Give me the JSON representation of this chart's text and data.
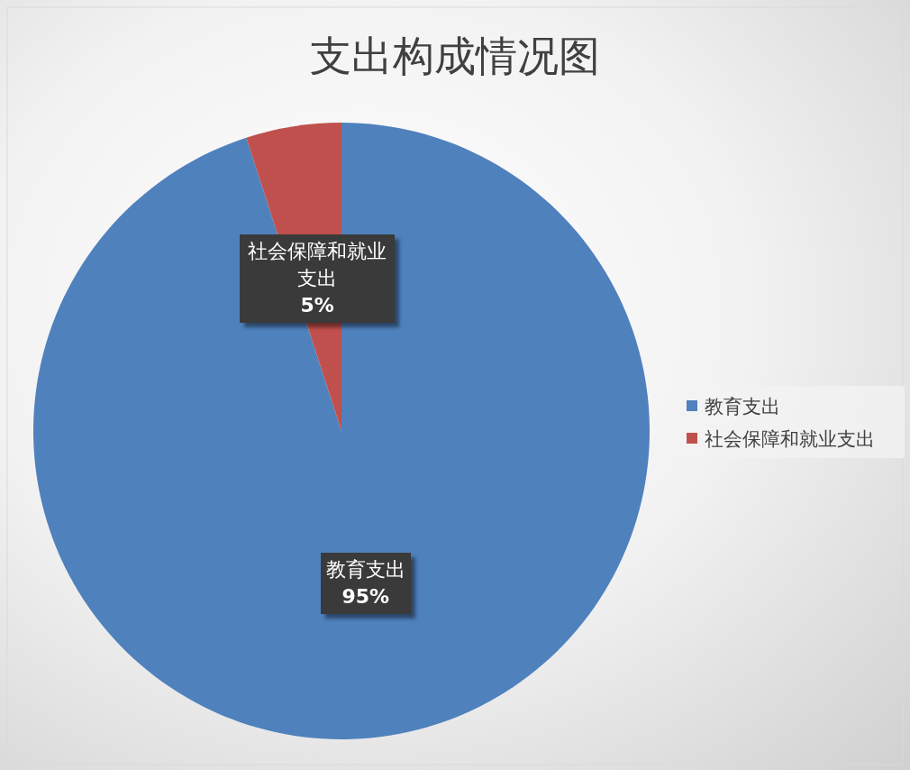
{
  "chart_data": {
    "type": "pie",
    "title": "支出构成情况图",
    "categories": [
      "教育支出",
      "社会保障和就业支出"
    ],
    "values": [
      95,
      5
    ],
    "colors": [
      "#4f81bd",
      "#c0504d"
    ],
    "value_labels": [
      "95%",
      "5%"
    ],
    "legend": "right"
  }
}
